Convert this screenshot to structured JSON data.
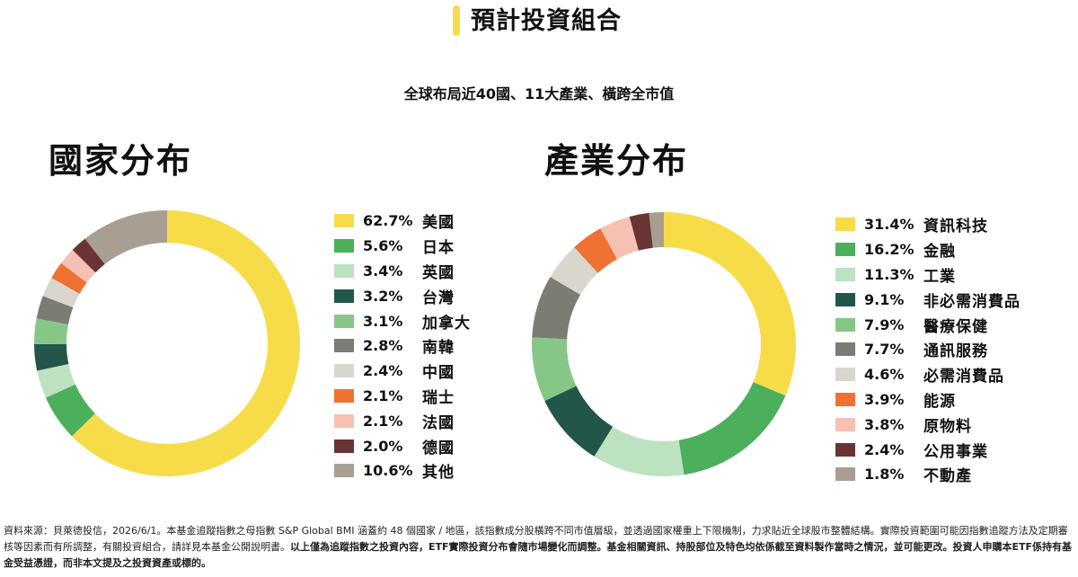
{
  "header": {
    "title": "預計投資組合",
    "subtitle": "全球布局近40國、11大產業、橫跨全市值",
    "accent_color": "#F7DC4A"
  },
  "chart_data": [
    {
      "type": "pie",
      "variant": "donut",
      "title": "國家分布",
      "legend_position": "right",
      "slices": [
        {
          "label": "美國",
          "display": "62.7%",
          "value": 62.7,
          "color": "#F7DC4A"
        },
        {
          "label": "日本",
          "display": "5.6%",
          "value": 5.6,
          "color": "#4CAF5C"
        },
        {
          "label": "英國",
          "display": "3.4%",
          "value": 3.4,
          "color": "#BCE2C0"
        },
        {
          "label": "台灣",
          "display": "3.2%",
          "value": 3.2,
          "color": "#23564A"
        },
        {
          "label": "加拿大",
          "display": "3.1%",
          "value": 3.1,
          "color": "#86C787"
        },
        {
          "label": "南韓",
          "display": "2.8%",
          "value": 2.8,
          "color": "#7D7C74"
        },
        {
          "label": "中國",
          "display": "2.4%",
          "value": 2.4,
          "color": "#D9D7CD"
        },
        {
          "label": "瑞士",
          "display": "2.1%",
          "value": 2.1,
          "color": "#EF7232"
        },
        {
          "label": "法國",
          "display": "2.1%",
          "value": 2.1,
          "color": "#F6C1B3"
        },
        {
          "label": "德國",
          "display": "2.0%",
          "value": 2.0,
          "color": "#6B3434"
        },
        {
          "label": "其他",
          "display": "10.6%",
          "value": 10.6,
          "color": "#A89E91"
        }
      ]
    },
    {
      "type": "pie",
      "variant": "donut",
      "title": "產業分布",
      "legend_position": "right",
      "slices": [
        {
          "label": "資訊科技",
          "display": "31.4%",
          "value": 31.4,
          "color": "#F7DC4A"
        },
        {
          "label": "金融",
          "display": "16.2%",
          "value": 16.2,
          "color": "#4CAF5C"
        },
        {
          "label": "工業",
          "display": "11.3%",
          "value": 11.3,
          "color": "#BCE2C0"
        },
        {
          "label": "非必需消費品",
          "display": "9.1%",
          "value": 9.1,
          "color": "#23564A"
        },
        {
          "label": "醫療保健",
          "display": "7.9%",
          "value": 7.9,
          "color": "#86C787"
        },
        {
          "label": "通訊服務",
          "display": "7.7%",
          "value": 7.7,
          "color": "#7D7C74"
        },
        {
          "label": "必需消費品",
          "display": "4.6%",
          "value": 4.6,
          "color": "#D9D7CD"
        },
        {
          "label": "能源",
          "display": "3.9%",
          "value": 3.9,
          "color": "#EF7232"
        },
        {
          "label": "原物料",
          "display": "3.8%",
          "value": 3.8,
          "color": "#F6C1B3"
        },
        {
          "label": "公用事業",
          "display": "2.4%",
          "value": 2.4,
          "color": "#6B3434"
        },
        {
          "label": "不動產",
          "display": "1.8%",
          "value": 1.8,
          "color": "#A89E91"
        }
      ]
    }
  ],
  "footnote": {
    "part1": "資料來源：貝萊德投信，2026/6/1。本基金追蹤指數之母指數 S&P Global BMI 涵蓋約 48 個國家 / 地區，該指數成分股橫跨不同市值層級，並透過國家權重上下限機制，力求貼近全球股市整體結構。實際投資範圍可能因指數追蹤方法及定期審核等因素而有所調整，有關投資組合，請詳見本基金公開說明書。",
    "part2": "以上僅為追蹤指數之投資內容，ETF實際投資分布會隨市場變化而調整。基金相關資訊、持股部位及特色均依係截至資料製作當時之情況，並可能更改。投資人申購本ETF係持有基金受益憑證，而非本文提及之投資資產或標的。"
  }
}
